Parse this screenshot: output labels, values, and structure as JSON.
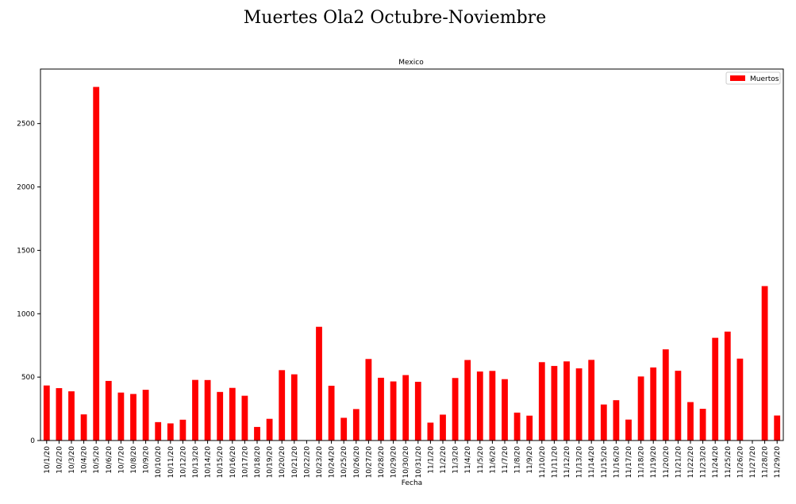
{
  "figure": {
    "suptitle": "Muertes Ola2 Octubre-Noviembre"
  },
  "colors": {
    "bar": "#ff0000",
    "axis": "#000000",
    "background": "#ffffff"
  },
  "chart_data": {
    "type": "bar",
    "title": "Mexico",
    "xlabel": "Fecha",
    "ylabel": "",
    "legend": {
      "entries": [
        "Muertos"
      ],
      "position": "top-right"
    },
    "grid": false,
    "ylim": [
      0,
      2930
    ],
    "yticks": [
      0,
      500,
      1000,
      1500,
      2000,
      2500
    ],
    "categories": [
      "10/1/20",
      "10/2/20",
      "10/3/20",
      "10/4/20",
      "10/5/20",
      "10/6/20",
      "10/7/20",
      "10/8/20",
      "10/9/20",
      "10/10/20",
      "10/11/20",
      "10/12/20",
      "10/13/20",
      "10/14/20",
      "10/15/20",
      "10/16/20",
      "10/17/20",
      "10/18/20",
      "10/19/20",
      "10/20/20",
      "10/21/20",
      "10/22/20",
      "10/23/20",
      "10/24/20",
      "10/25/20",
      "10/26/20",
      "10/27/20",
      "10/28/20",
      "10/29/20",
      "10/30/20",
      "10/31/20",
      "11/1/20",
      "11/2/20",
      "11/3/20",
      "11/4/20",
      "11/5/20",
      "11/6/20",
      "11/7/20",
      "11/8/20",
      "11/9/20",
      "11/10/20",
      "11/11/20",
      "11/12/20",
      "11/13/20",
      "11/14/20",
      "11/15/20",
      "11/16/20",
      "11/17/20",
      "11/18/20",
      "11/19/20",
      "11/20/20",
      "11/21/20",
      "11/22/20",
      "11/23/20",
      "11/24/20",
      "11/25/20",
      "11/26/20",
      "11/27/20",
      "11/28/20",
      "11/29/20"
    ],
    "series": [
      {
        "name": "Muertos",
        "values": [
          434,
          413,
          388,
          206,
          2789,
          470,
          378,
          367,
          400,
          145,
          135,
          164,
          478,
          477,
          383,
          415,
          353,
          107,
          171,
          555,
          522,
          0,
          897,
          432,
          179,
          248,
          643,
          495,
          466,
          516,
          463,
          141,
          204,
          493,
          635,
          544,
          549,
          484,
          220,
          196,
          618,
          588,
          624,
          569,
          636,
          284,
          318,
          165,
          505,
          576,
          719,
          550,
          303,
          250,
          810,
          859,
          646,
          0,
          1218,
          197
        ]
      }
    ]
  }
}
